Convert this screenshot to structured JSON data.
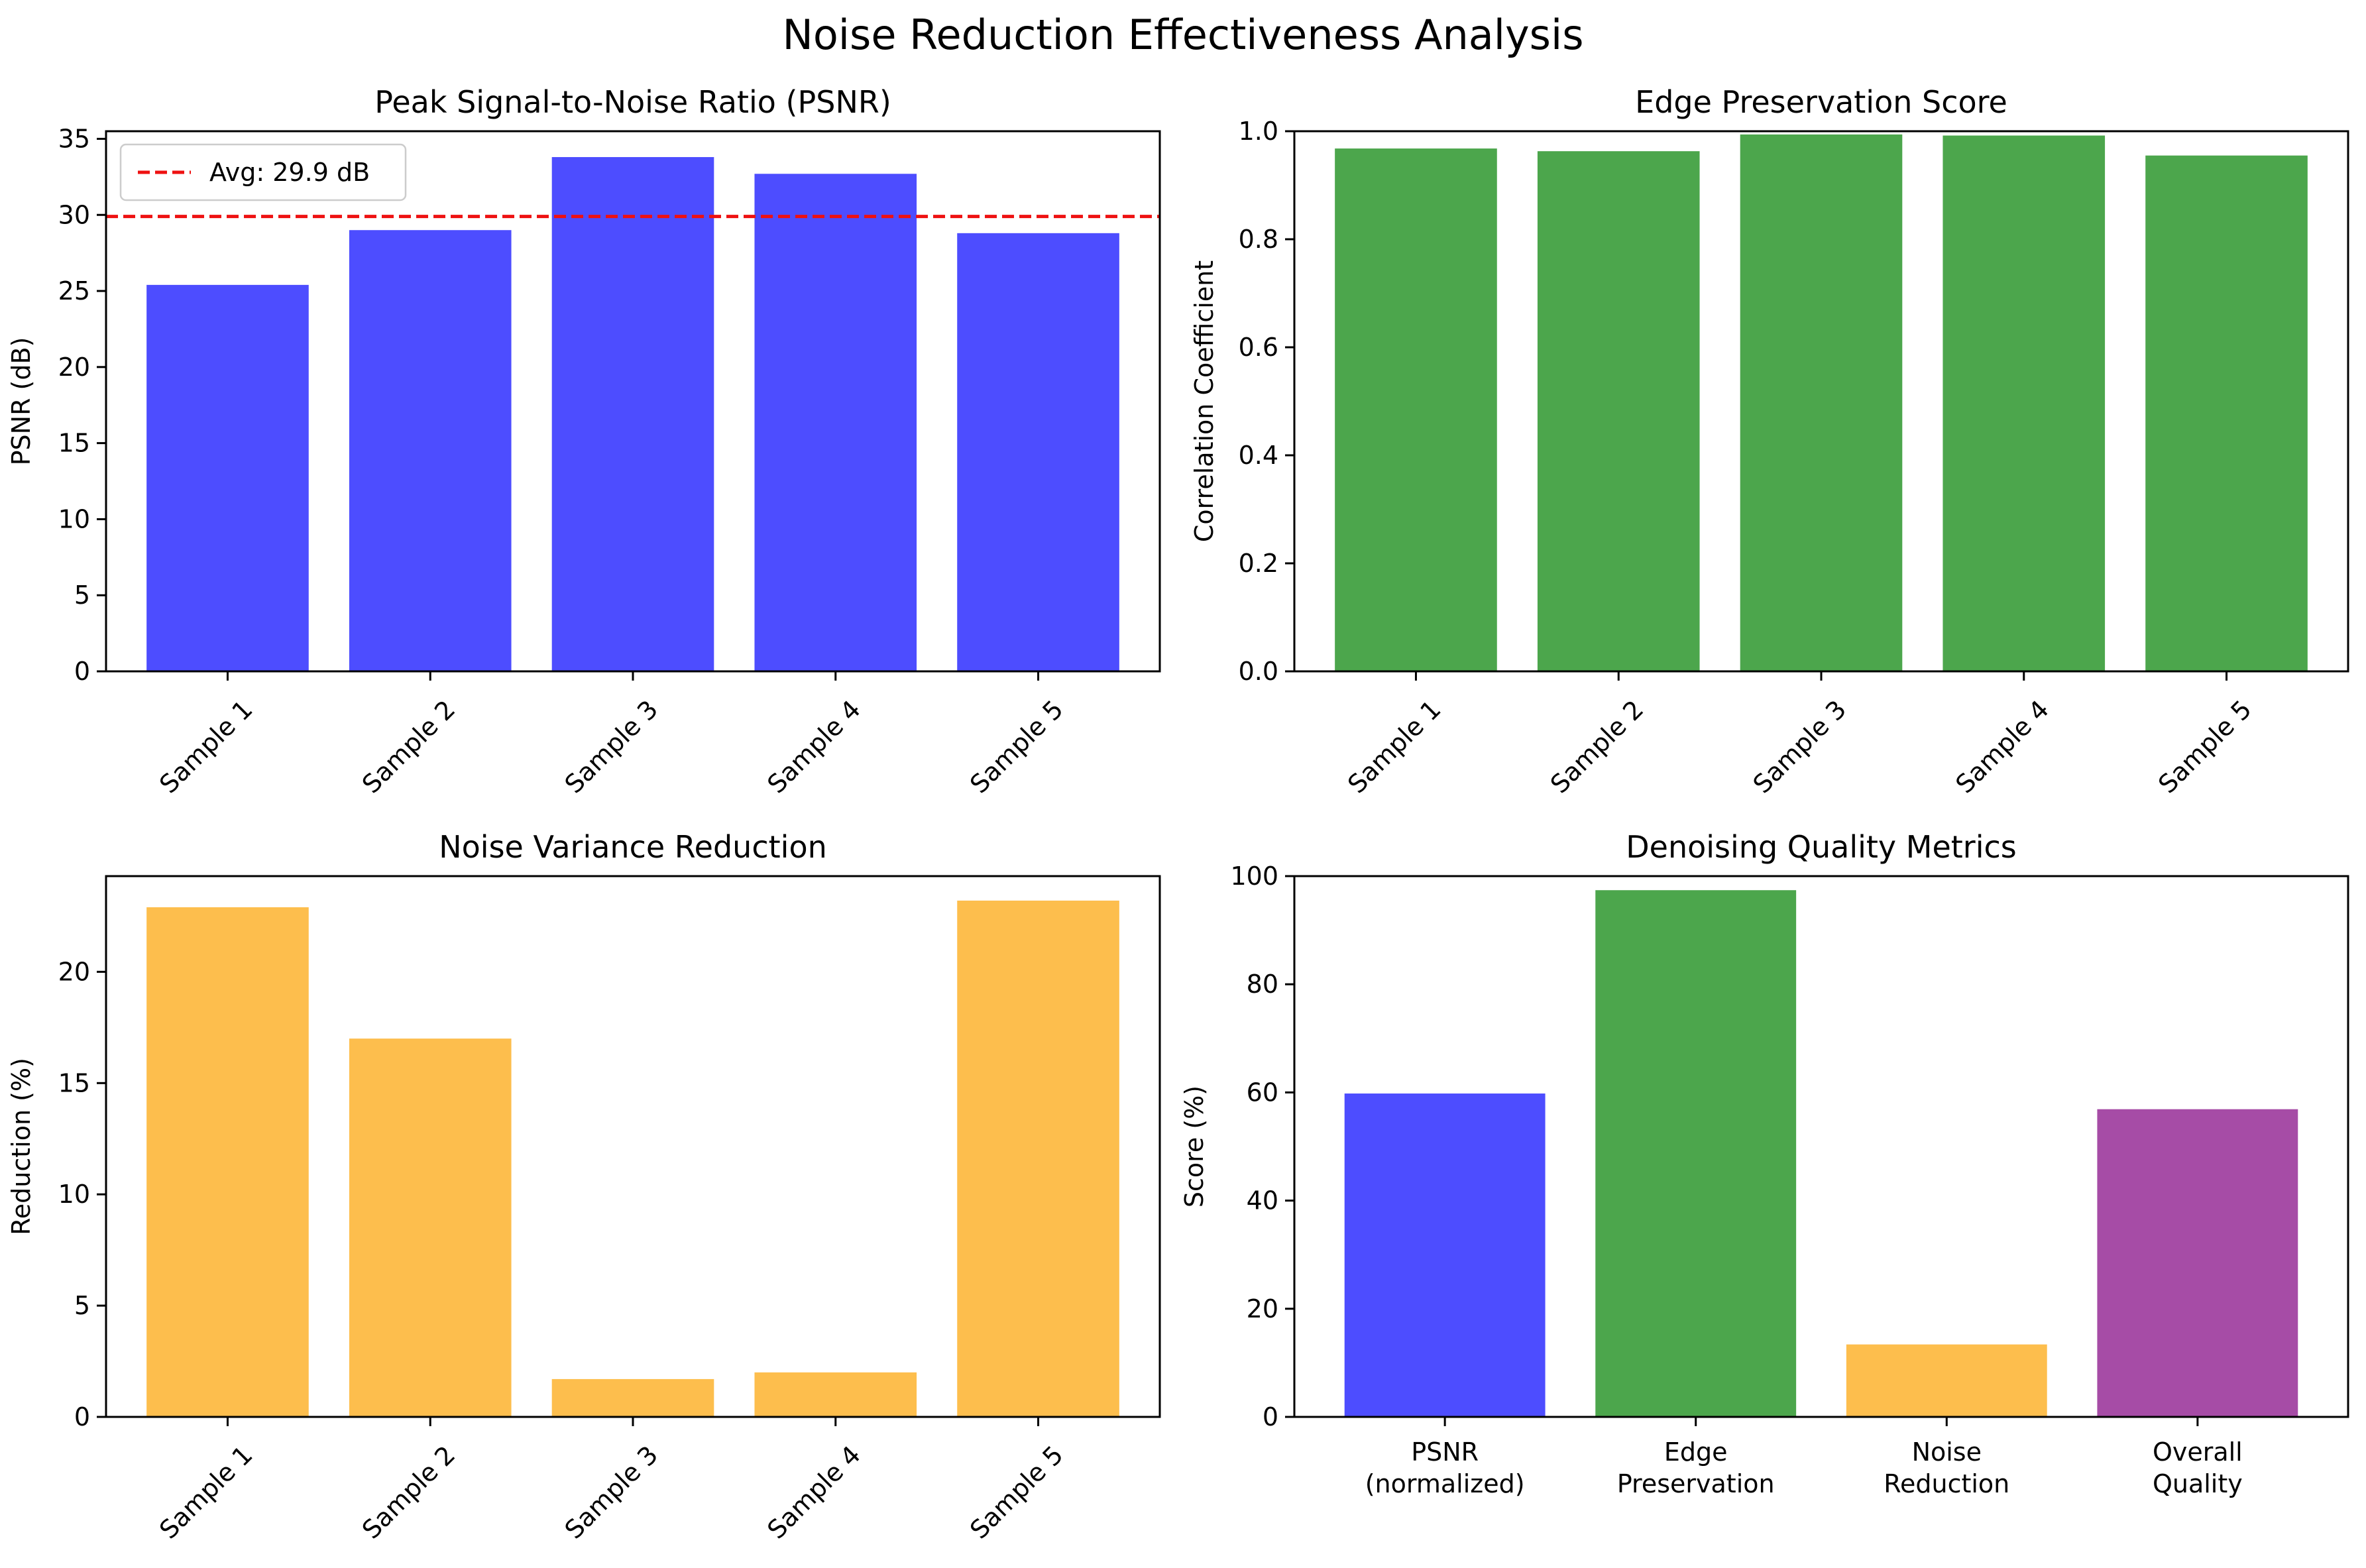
{
  "figure": {
    "title": "Noise Reduction Effectiveness Analysis"
  },
  "chart_data": [
    {
      "type": "bar",
      "title": "Peak Signal-to-Noise Ratio (PSNR)",
      "xlabel": "",
      "ylabel": "PSNR (dB)",
      "categories": [
        "Sample 1",
        "Sample 2",
        "Sample 3",
        "Sample 4",
        "Sample 5"
      ],
      "values": [
        25.4,
        29.0,
        33.8,
        32.7,
        28.8
      ],
      "ylim": [
        0,
        35.5
      ],
      "yticks": [
        0,
        5,
        10,
        15,
        20,
        25,
        30,
        35
      ],
      "bar_color": "#4d4dff",
      "rotate_xticks": true,
      "reference_line": {
        "value": 29.9,
        "label": "Avg: 29.9 dB",
        "color": "#ee1111",
        "style": "dashed"
      },
      "legend": "top-left",
      "grid": false
    },
    {
      "type": "bar",
      "title": "Edge Preservation Score",
      "xlabel": "",
      "ylabel": "Correlation Coefficient",
      "categories": [
        "Sample 1",
        "Sample 2",
        "Sample 3",
        "Sample 4",
        "Sample 5"
      ],
      "values": [
        0.968,
        0.963,
        0.994,
        0.992,
        0.955
      ],
      "ylim": [
        0,
        1.0
      ],
      "yticks": [
        "0.0",
        "0.2",
        "0.4",
        "0.6",
        "0.8",
        "1.0"
      ],
      "bar_color": "#4ca64c",
      "rotate_xticks": true,
      "grid": false
    },
    {
      "type": "bar",
      "title": "Noise Variance Reduction",
      "xlabel": "",
      "ylabel": "Reduction (%)",
      "categories": [
        "Sample 1",
        "Sample 2",
        "Sample 3",
        "Sample 4",
        "Sample 5"
      ],
      "values": [
        22.9,
        17.0,
        1.7,
        2.0,
        23.2
      ],
      "ylim": [
        0,
        24.3
      ],
      "yticks": [
        0,
        5,
        10,
        15,
        20
      ],
      "bar_color": "#fdbe4d",
      "rotate_xticks": true,
      "grid": false
    },
    {
      "type": "bar",
      "title": "Denoising Quality Metrics",
      "xlabel": "",
      "ylabel": "Score (%)",
      "categories": [
        "PSNR\n(normalized)",
        "Edge\nPreservation",
        "Noise\nReduction",
        "Overall\nQuality"
      ],
      "values": [
        59.8,
        97.4,
        13.4,
        56.9
      ],
      "ylim": [
        0,
        100
      ],
      "yticks": [
        0,
        20,
        40,
        60,
        80,
        100
      ],
      "bar_colors": [
        "#4d4dff",
        "#4ca64c",
        "#fdbe4d",
        "#a64ca6"
      ],
      "rotate_xticks": false,
      "grid": false
    }
  ]
}
